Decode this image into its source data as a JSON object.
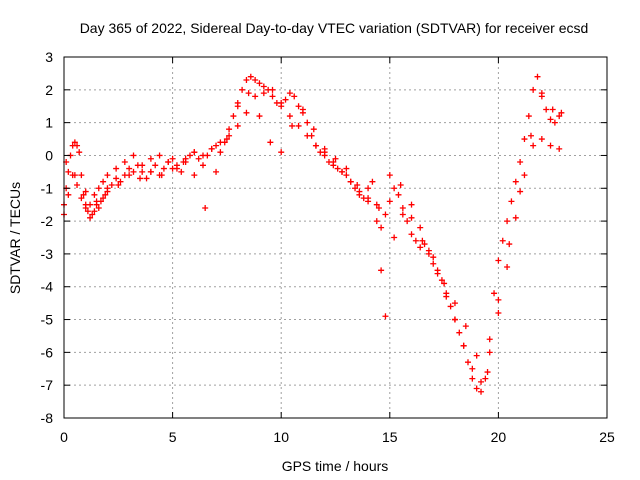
{
  "chart_data": {
    "type": "scatter",
    "title": "Day 365 of 2022, Sidereal Day-to-day VTEC variation (SDTVAR) for receiver ecsd",
    "xlabel": "GPS time / hours",
    "ylabel": "SDTVAR / TECUs",
    "xlim": [
      0,
      25
    ],
    "ylim": [
      -8,
      3
    ],
    "xticks": [
      "0",
      "5",
      "10",
      "15",
      "20",
      "25"
    ],
    "yticks": [
      "-8",
      "-7",
      "-6",
      "-5",
      "-4",
      "-3",
      "-2",
      "-1",
      "0",
      "1",
      "2",
      "3"
    ],
    "grid": true,
    "marker": "plus",
    "color": "#ff0000",
    "series": [
      {
        "x": [
          0.0,
          0.1,
          0.2,
          0.3,
          0.4,
          0.5,
          0.6,
          0.7,
          0.8,
          0.9,
          1.0,
          1.1,
          1.2,
          1.3,
          1.4,
          1.5,
          1.6,
          1.7,
          1.8,
          1.9,
          2.0,
          2.2,
          2.4,
          2.6,
          2.8,
          3.0,
          3.2,
          3.4,
          3.6,
          3.8,
          4.0,
          4.2,
          4.4,
          4.6,
          4.8,
          5.0,
          5.2,
          5.4,
          5.6,
          5.8,
          6.0,
          6.2,
          6.4,
          6.6,
          6.8,
          7.0,
          7.2,
          7.4,
          7.6,
          7.8,
          8.0,
          8.2,
          8.4,
          8.6,
          8.8,
          9.0,
          9.2,
          9.4,
          9.6,
          9.8,
          10.0,
          10.2,
          10.4,
          10.6,
          10.8,
          11.0,
          11.2,
          11.4,
          11.6,
          11.8,
          12.0,
          12.2,
          12.4,
          12.6,
          12.8,
          13.0,
          13.2,
          13.4,
          13.6,
          13.8,
          14.0,
          14.2,
          14.4,
          14.6,
          14.8,
          15.0,
          15.2,
          15.4,
          15.6,
          15.8,
          16.0,
          16.2,
          16.4,
          16.6,
          16.8,
          17.0,
          17.2,
          17.4,
          17.6,
          17.8,
          18.0,
          18.2,
          18.4,
          18.6,
          18.8,
          19.0,
          19.2,
          19.4,
          19.6,
          19.8,
          20.0,
          20.2,
          20.4,
          20.6,
          20.8,
          21.0,
          21.2,
          21.4,
          21.6,
          21.8,
          22.0,
          22.2,
          22.4,
          22.6,
          22.8
        ],
        "y": [
          -1.5,
          -1.0,
          -0.5,
          0.0,
          0.3,
          0.4,
          0.3,
          0.1,
          -0.6,
          -1.2,
          -1.5,
          -1.7,
          -1.9,
          -1.8,
          -1.7,
          -1.5,
          -1.6,
          -1.4,
          -1.3,
          -1.2,
          -1.0,
          -0.9,
          -0.7,
          -0.8,
          -0.6,
          -0.4,
          0.0,
          -0.3,
          -0.5,
          -0.7,
          -0.5,
          -0.3,
          -0.6,
          -0.4,
          -0.2,
          -0.1,
          -0.3,
          -0.5,
          -0.2,
          0.0,
          0.1,
          -0.1,
          -0.3,
          0.0,
          0.2,
          0.3,
          0.1,
          0.4,
          0.8,
          1.2,
          1.6,
          2.0,
          2.3,
          2.4,
          2.3,
          2.2,
          1.9,
          2.0,
          1.8,
          1.6,
          1.5,
          1.7,
          1.9,
          1.8,
          1.5,
          1.3,
          1.0,
          0.6,
          0.3,
          0.1,
          0.0,
          -0.2,
          -0.3,
          -0.4,
          -0.5,
          -0.6,
          -0.8,
          -1.0,
          -1.2,
          -1.3,
          -1.0,
          -0.8,
          -1.5,
          -2.2,
          -1.8,
          -1.4,
          -1.0,
          -1.2,
          -1.6,
          -2.0,
          -2.4,
          -2.6,
          -2.8,
          -2.7,
          -3.0,
          -3.3,
          -3.5,
          -3.8,
          -4.2,
          -4.6,
          -5.0,
          -5.4,
          -5.8,
          -6.3,
          -6.8,
          -7.1,
          -7.2,
          -6.8,
          -5.6,
          -4.2,
          -3.2,
          -2.6,
          -2.0,
          -1.4,
          -0.8,
          -0.2,
          0.5,
          1.2,
          2.0,
          2.4,
          1.8,
          1.4,
          1.1,
          1.0,
          1.2
        ]
      },
      {
        "x": [
          0.0,
          0.2,
          0.4,
          0.6,
          0.8,
          1.0,
          1.2,
          1.4,
          1.6,
          1.8,
          2.0,
          2.4,
          2.8,
          3.2,
          3.6,
          4.0,
          4.4,
          4.8,
          5.2,
          5.6,
          6.0,
          6.4,
          6.8,
          7.2,
          7.6,
          8.0,
          8.4,
          8.8,
          9.2,
          9.6,
          10.0,
          10.4,
          10.8,
          11.2,
          11.6,
          12.0,
          12.4,
          12.8,
          13.2,
          13.6,
          14.0,
          14.4,
          14.6,
          14.8,
          15.2,
          15.6,
          16.0,
          16.4,
          16.8,
          17.2,
          17.6,
          18.0,
          18.4,
          18.8,
          19.2,
          19.6,
          20.0,
          20.4,
          20.8,
          21.2,
          21.6,
          22.0,
          22.4,
          22.8
        ],
        "y": [
          -1.8,
          -1.2,
          -0.6,
          -0.9,
          -1.3,
          -1.6,
          -1.5,
          -1.2,
          -1.0,
          -0.8,
          -0.6,
          -0.4,
          -0.2,
          -0.5,
          -0.3,
          -0.1,
          0.0,
          -0.2,
          -0.4,
          -0.1,
          0.1,
          0.0,
          0.2,
          0.4,
          0.6,
          0.9,
          1.3,
          1.8,
          2.1,
          2.0,
          1.6,
          1.2,
          0.9,
          0.6,
          0.3,
          0.1,
          -0.2,
          -0.5,
          -0.8,
          -1.1,
          -1.4,
          -2.0,
          -3.5,
          -4.9,
          -2.5,
          -1.8,
          -1.5,
          -2.2,
          -2.9,
          -3.6,
          -4.3,
          -5.0,
          -5.8,
          -6.5,
          -6.9,
          -6.0,
          -4.8,
          -3.4,
          -1.9,
          -0.6,
          0.3,
          0.5,
          0.3,
          0.2
        ]
      },
      {
        "x": [
          0.1,
          0.5,
          1.0,
          1.5,
          2.0,
          2.5,
          3.0,
          3.5,
          4.0,
          4.5,
          5.0,
          5.5,
          6.0,
          6.5,
          7.0,
          7.5,
          8.0,
          8.5,
          9.0,
          9.5,
          10.0,
          10.5,
          11.0,
          11.5,
          12.0,
          12.5,
          13.0,
          13.5,
          14.0,
          14.5,
          15.0,
          15.5,
          16.0,
          16.5,
          17.0,
          17.5,
          18.0,
          18.5,
          19.0,
          19.5,
          20.0,
          20.5,
          21.0,
          21.5,
          22.0,
          22.5,
          22.9
        ],
        "y": [
          -0.2,
          -0.6,
          -1.1,
          -1.4,
          -1.1,
          -0.9,
          -0.6,
          -0.7,
          -0.5,
          -0.6,
          -0.4,
          -0.2,
          -0.6,
          -1.6,
          -0.5,
          0.5,
          1.5,
          1.9,
          1.2,
          0.4,
          0.1,
          0.9,
          1.4,
          0.8,
          0.2,
          -0.1,
          -0.4,
          -0.9,
          -1.3,
          -1.6,
          -0.6,
          -0.9,
          -1.9,
          -2.6,
          -3.1,
          -3.9,
          -4.5,
          -5.2,
          -6.1,
          -6.6,
          -4.4,
          -2.7,
          -1.1,
          0.6,
          1.9,
          1.4,
          1.3
        ]
      }
    ]
  }
}
